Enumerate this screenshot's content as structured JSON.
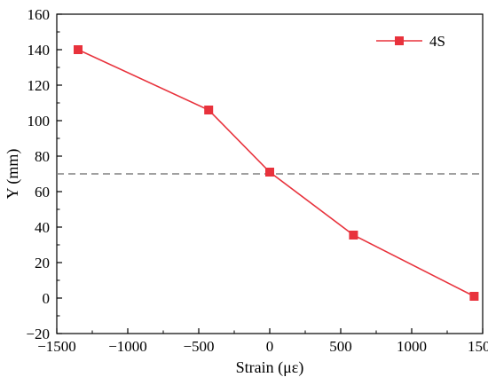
{
  "chart_data": {
    "type": "line",
    "title": "",
    "xlabel": "Strain (με)",
    "ylabel": "Y (mm)",
    "xlim": [
      -1500,
      1500
    ],
    "ylim": [
      -20,
      160
    ],
    "xticks": [
      -1500,
      -1000,
      -500,
      0,
      500,
      1000,
      1500
    ],
    "yticks": [
      -20,
      0,
      20,
      40,
      60,
      80,
      100,
      120,
      140,
      160
    ],
    "grid": false,
    "legend_position": "top-right",
    "series": [
      {
        "name": "4S",
        "color": "#e8323c",
        "marker": "square",
        "points": [
          {
            "x": -1350,
            "y": 140
          },
          {
            "x": -430,
            "y": 106
          },
          {
            "x": 0,
            "y": 71
          },
          {
            "x": 590,
            "y": 35.5
          },
          {
            "x": 1440,
            "y": 1
          }
        ]
      }
    ],
    "reference_line": {
      "y": 70,
      "style": "dashed",
      "color": "#808080"
    }
  }
}
